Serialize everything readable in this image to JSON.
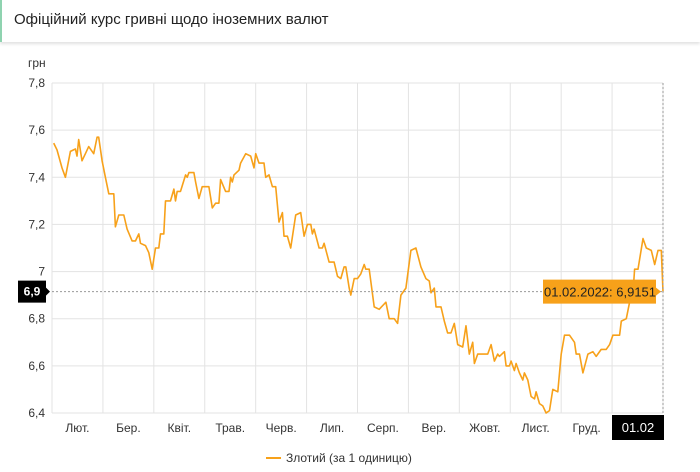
{
  "header": {
    "title": "Офіційний курс гривні щодо іноземних валют"
  },
  "chart_data": {
    "type": "line",
    "title": "Офіційний курс гривні щодо іноземних валют",
    "ylabel": "грн",
    "xlabel": "",
    "ylim": [
      6.4,
      7.8
    ],
    "yticks": [
      "7,8",
      "7,6",
      "7,4",
      "7,2",
      "7",
      "6,8",
      "6,6",
      "6,4"
    ],
    "ytick_values": [
      7.8,
      7.6,
      7.4,
      7.2,
      7.0,
      6.8,
      6.6,
      6.4
    ],
    "xlim_days": [
      0,
      366
    ],
    "x_month_labels": [
      "Лют.",
      "Бер.",
      "Квіт.",
      "Трав.",
      "Черв.",
      "Лип.",
      "Серп.",
      "Вер.",
      "Жовт.",
      "Лист.",
      "Груд."
    ],
    "grid": true,
    "legend_position": "bottom-center",
    "series": [
      {
        "name": "Злотий (за 1 одиницю)",
        "color": "#f7a11a",
        "points": [
          [
            1,
            7.545
          ],
          [
            3,
            7.516
          ],
          [
            6,
            7.44
          ],
          [
            8,
            7.4
          ],
          [
            11,
            7.51
          ],
          [
            14,
            7.52
          ],
          [
            15,
            7.49
          ],
          [
            16,
            7.56
          ],
          [
            18,
            7.47
          ],
          [
            20,
            7.5
          ],
          [
            22,
            7.53
          ],
          [
            25,
            7.5
          ],
          [
            27,
            7.57
          ],
          [
            28,
            7.57
          ],
          [
            30,
            7.47
          ],
          [
            32,
            7.4
          ],
          [
            34,
            7.33
          ],
          [
            37,
            7.33
          ],
          [
            38,
            7.19
          ],
          [
            40,
            7.24
          ],
          [
            43,
            7.24
          ],
          [
            45,
            7.18
          ],
          [
            48,
            7.13
          ],
          [
            50,
            7.13
          ],
          [
            52,
            7.16
          ],
          [
            53,
            7.12
          ],
          [
            56,
            7.11
          ],
          [
            58,
            7.08
          ],
          [
            60,
            7.01
          ],
          [
            62,
            7.1
          ],
          [
            64,
            7.1
          ],
          [
            65,
            7.16
          ],
          [
            67,
            7.16
          ],
          [
            68,
            7.3
          ],
          [
            71,
            7.3
          ],
          [
            73,
            7.35
          ],
          [
            74,
            7.3
          ],
          [
            75,
            7.34
          ],
          [
            77,
            7.34
          ],
          [
            80,
            7.41
          ],
          [
            81,
            7.4
          ],
          [
            82,
            7.42
          ],
          [
            85,
            7.42
          ],
          [
            86,
            7.38
          ],
          [
            88,
            7.31
          ],
          [
            90,
            7.36
          ],
          [
            94,
            7.36
          ],
          [
            96,
            7.27
          ],
          [
            98,
            7.29
          ],
          [
            100,
            7.29
          ],
          [
            101,
            7.39
          ],
          [
            104,
            7.34
          ],
          [
            106,
            7.34
          ],
          [
            107,
            7.4
          ],
          [
            108,
            7.38
          ],
          [
            109,
            7.41
          ],
          [
            112,
            7.43
          ],
          [
            113,
            7.46
          ],
          [
            116,
            7.5
          ],
          [
            119,
            7.49
          ],
          [
            121,
            7.44
          ],
          [
            122,
            7.5
          ],
          [
            124,
            7.46
          ],
          [
            127,
            7.46
          ],
          [
            128,
            7.4
          ],
          [
            130,
            7.41
          ],
          [
            132,
            7.36
          ],
          [
            134,
            7.36
          ],
          [
            136,
            7.21
          ],
          [
            138,
            7.25
          ],
          [
            139,
            7.15
          ],
          [
            141,
            7.15
          ],
          [
            143,
            7.1
          ],
          [
            146,
            7.24
          ],
          [
            149,
            7.25
          ],
          [
            151,
            7.15
          ],
          [
            153,
            7.2
          ],
          [
            155,
            7.2
          ],
          [
            156,
            7.16
          ],
          [
            157,
            7.18
          ],
          [
            160,
            7.1
          ],
          [
            162,
            7.1
          ],
          [
            163,
            7.12
          ],
          [
            166,
            7.04
          ],
          [
            169,
            7.04
          ],
          [
            171,
            6.98
          ],
          [
            173,
            6.97
          ],
          [
            175,
            7.02
          ],
          [
            176,
            7.02
          ],
          [
            178,
            6.93
          ],
          [
            179,
            6.9
          ],
          [
            181,
            6.97
          ],
          [
            183,
            6.97
          ],
          [
            185,
            6.99
          ],
          [
            187,
            7.03
          ],
          [
            188,
            7.01
          ],
          [
            190,
            7.01
          ],
          [
            193,
            6.85
          ],
          [
            196,
            6.84
          ],
          [
            200,
            6.87
          ],
          [
            202,
            6.8
          ],
          [
            205,
            6.8
          ],
          [
            207,
            6.78
          ],
          [
            209,
            6.9
          ],
          [
            212,
            6.93
          ],
          [
            215,
            7.09
          ],
          [
            218,
            7.1
          ],
          [
            221,
            7.02
          ],
          [
            224,
            6.97
          ],
          [
            226,
            6.96
          ],
          [
            227,
            6.91
          ],
          [
            229,
            6.93
          ],
          [
            230,
            6.85
          ],
          [
            233,
            6.85
          ],
          [
            235,
            6.79
          ],
          [
            237,
            6.74
          ],
          [
            239,
            6.74
          ],
          [
            241,
            6.78
          ],
          [
            243,
            6.69
          ],
          [
            246,
            6.68
          ],
          [
            248,
            6.77
          ],
          [
            250,
            6.65
          ],
          [
            252,
            6.7
          ],
          [
            253,
            6.61
          ],
          [
            255,
            6.65
          ],
          [
            261,
            6.65
          ],
          [
            263,
            6.69
          ],
          [
            265,
            6.62
          ],
          [
            267,
            6.65
          ],
          [
            268,
            6.64
          ],
          [
            271,
            6.66
          ],
          [
            272,
            6.6
          ],
          [
            274,
            6.6
          ],
          [
            275,
            6.62
          ],
          [
            277,
            6.58
          ],
          [
            278,
            6.61
          ],
          [
            280,
            6.57
          ],
          [
            282,
            6.54
          ],
          [
            283,
            6.57
          ],
          [
            285,
            6.54
          ],
          [
            287,
            6.47
          ],
          [
            289,
            6.46
          ],
          [
            290,
            6.49
          ],
          [
            292,
            6.44
          ],
          [
            294,
            6.43
          ],
          [
            296,
            6.4
          ],
          [
            298,
            6.41
          ],
          [
            300,
            6.5
          ],
          [
            303,
            6.49
          ],
          [
            305,
            6.65
          ],
          [
            307,
            6.73
          ],
          [
            310,
            6.73
          ],
          [
            313,
            6.7
          ],
          [
            314,
            6.65
          ],
          [
            316,
            6.65
          ],
          [
            318,
            6.57
          ],
          [
            321,
            6.65
          ],
          [
            324,
            6.66
          ],
          [
            326,
            6.64
          ],
          [
            329,
            6.67
          ],
          [
            332,
            6.67
          ],
          [
            334,
            6.69
          ],
          [
            336,
            6.73
          ],
          [
            340,
            6.73
          ],
          [
            341,
            6.79
          ],
          [
            344,
            6.8
          ],
          [
            346,
            6.87
          ],
          [
            348,
            6.91
          ],
          [
            349,
            7.01
          ],
          [
            351,
            7.01
          ],
          [
            354,
            7.14
          ],
          [
            356,
            7.1
          ],
          [
            359,
            7.09
          ],
          [
            361,
            7.03
          ],
          [
            363,
            7.09
          ],
          [
            365,
            7.09
          ],
          [
            366,
            6.9151
          ]
        ]
      }
    ],
    "crosshair": {
      "y_label": "6,9",
      "x_label": "01.02",
      "y_value": 6.9151
    },
    "tooltip": {
      "text": "01.02.2022: 6,9151",
      "color": "#f7a11a"
    }
  }
}
